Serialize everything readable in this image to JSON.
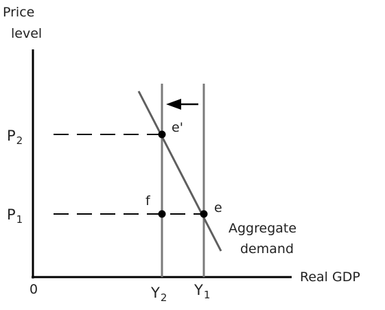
{
  "axes": {
    "y_label_line1": "Price",
    "y_label_line2": "level",
    "x_label": "Real GDP",
    "origin": "0"
  },
  "price_levels": {
    "p2_letter": "P",
    "p2_sub": "2",
    "p1_letter": "P",
    "p1_sub": "1"
  },
  "outputs": {
    "y2_letter": "Y",
    "y2_sub": "2",
    "y1_letter": "Y",
    "y1_sub": "1"
  },
  "points": {
    "e_prime": "e'",
    "e": "e",
    "f": "f"
  },
  "curve": {
    "line1": "Aggregate",
    "line2": "demand"
  },
  "colors": {
    "axis": "#000000",
    "vertical_lines": "#7b7b7b",
    "aggregate_demand": "#5f5f5f",
    "text": "#222222"
  }
}
